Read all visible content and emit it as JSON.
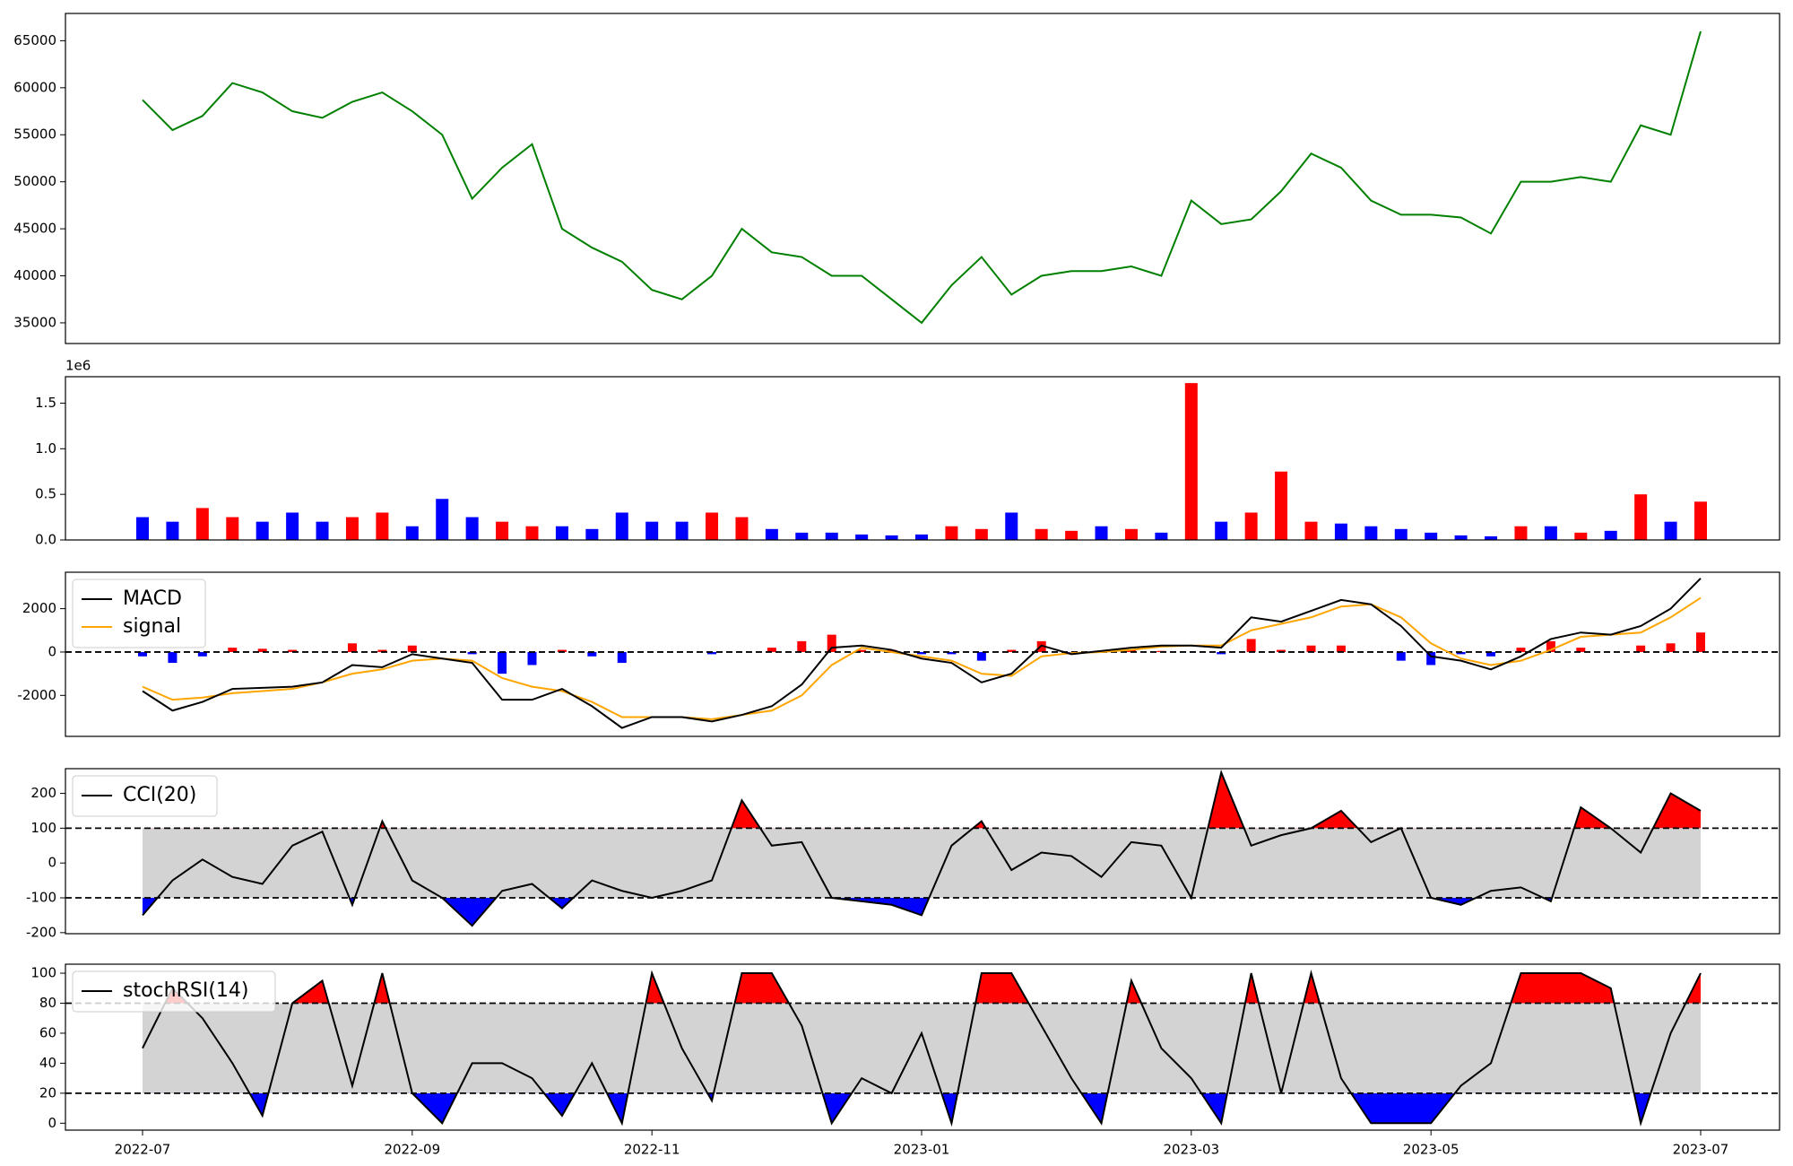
{
  "chart_data": [
    {
      "type": "line",
      "color": "green",
      "values": [
        58700,
        55500,
        57000,
        60500,
        59500,
        57500,
        56800,
        58500,
        59500,
        57500,
        55000,
        48200,
        51500,
        54000,
        45000,
        43000,
        41500,
        38500,
        37500,
        40000,
        45000,
        42500,
        42000,
        40000,
        40000,
        37500,
        35000,
        39000,
        42000,
        38000,
        40000,
        40500,
        40500,
        41000,
        40000,
        48000,
        45500,
        46000,
        49000,
        53000,
        51500,
        48000,
        46500,
        46500,
        46200,
        44500,
        50000,
        50000,
        50500,
        50000,
        56000,
        55000,
        66000
      ],
      "ylim": [
        32800,
        67900
      ],
      "yticks": [
        35000,
        40000,
        45000,
        50000,
        55000,
        60000,
        65000
      ]
    },
    {
      "type": "bar",
      "offset_label": "1e6",
      "values": [
        0.25,
        0.2,
        0.35,
        0.25,
        0.2,
        0.3,
        0.2,
        0.25,
        0.3,
        0.15,
        0.45,
        0.25,
        0.2,
        0.15,
        0.15,
        0.12,
        0.3,
        0.2,
        0.2,
        0.3,
        0.25,
        0.12,
        0.08,
        0.08,
        0.06,
        0.05,
        0.06,
        0.15,
        0.12,
        0.3,
        0.12,
        0.1,
        0.15,
        0.12,
        0.08,
        1.72,
        0.2,
        0.3,
        0.75,
        0.2,
        0.18,
        0.15,
        0.12,
        0.08,
        0.05,
        0.04,
        0.15,
        0.15,
        0.08,
        0.1,
        0.5,
        0.2,
        0.42
      ],
      "colors": [
        "blue",
        "blue",
        "red",
        "red",
        "blue",
        "blue",
        "blue",
        "red",
        "red",
        "blue",
        "blue",
        "blue",
        "red",
        "red",
        "blue",
        "blue",
        "blue",
        "blue",
        "blue",
        "red",
        "red",
        "blue",
        "blue",
        "blue",
        "blue",
        "blue",
        "blue",
        "red",
        "red",
        "blue",
        "red",
        "red",
        "blue",
        "red",
        "blue",
        "red",
        "blue",
        "red",
        "red",
        "red",
        "blue",
        "blue",
        "blue",
        "blue",
        "blue",
        "blue",
        "red",
        "blue",
        "red",
        "blue",
        "red",
        "blue",
        "red"
      ],
      "ylim": [
        0,
        1.79
      ],
      "yticks": [
        {
          "value": 0,
          "label": "0.0"
        },
        0.5,
        {
          "value": 1,
          "label": "1.0"
        },
        1.5
      ]
    },
    {
      "type": "macd",
      "legend": "upper left",
      "series": [
        {
          "name": "MACD",
          "color": "black",
          "values": [
            -1800,
            -2700,
            -2300,
            -1700,
            -1650,
            -1600,
            -1400,
            -600,
            -700,
            -100,
            -300,
            -500,
            -2200,
            -2200,
            -1700,
            -2500,
            -3500,
            -3000,
            -3000,
            -3200,
            -2900,
            -2500,
            -1500,
            200,
            300,
            100,
            -300,
            -500,
            -1400,
            -1000,
            300,
            -100,
            50,
            200,
            300,
            300,
            200,
            1600,
            1400,
            1900,
            2400,
            2200,
            1200,
            -200,
            -400,
            -800,
            -200,
            600,
            900,
            800,
            1200,
            2000,
            3400
          ]
        },
        {
          "name": "signal",
          "color": "orange",
          "values": [
            -1600,
            -2200,
            -2100,
            -1900,
            -1800,
            -1700,
            -1400,
            -1000,
            -800,
            -400,
            -300,
            -400,
            -1200,
            -1600,
            -1800,
            -2300,
            -3000,
            -3000,
            -3000,
            -3100,
            -2900,
            -2700,
            -2000,
            -600,
            200,
            0,
            -200,
            -400,
            -1000,
            -1100,
            -200,
            -50,
            0,
            100,
            250,
            300,
            300,
            1000,
            1300,
            1600,
            2100,
            2200,
            1600,
            400,
            -300,
            -600,
            -400,
            100,
            700,
            800,
            900,
            1600,
            2500
          ]
        }
      ],
      "histogram": {
        "up_color": "red",
        "down_color": "blue",
        "values": [
          -200,
          -500,
          -200,
          200,
          150,
          100,
          0,
          400,
          100,
          300,
          0,
          -100,
          -1000,
          -600,
          100,
          -200,
          -500,
          0,
          0,
          -100,
          0,
          200,
          500,
          800,
          100,
          100,
          -100,
          -100,
          -400,
          100,
          500,
          -50,
          50,
          100,
          50,
          0,
          -100,
          600,
          100,
          300,
          300,
          0,
          -400,
          -600,
          -100,
          -200,
          200,
          500,
          200,
          0,
          300,
          400,
          900
        ]
      },
      "ref_lines": [
        0
      ],
      "ylim": [
        -3890,
        3680
      ],
      "yticks": [
        -2000,
        0,
        2000
      ]
    },
    {
      "type": "oscillator",
      "legend": "upper left",
      "above_color": "red",
      "below_color": "blue",
      "band_color": "lightgray",
      "series": [
        {
          "name": "CCI(20)",
          "color": "black",
          "values": [
            -150,
            -50,
            10,
            -40,
            -60,
            50,
            90,
            -120,
            120,
            -50,
            -100,
            -180,
            -80,
            -60,
            -130,
            -50,
            -80,
            -100,
            -80,
            -50,
            180,
            50,
            60,
            -100,
            -110,
            -120,
            -150,
            50,
            120,
            -20,
            30,
            20,
            -40,
            60,
            50,
            -100,
            260,
            50,
            80,
            100,
            150,
            60,
            100,
            -100,
            -120,
            -80,
            -70,
            -110,
            160,
            100,
            30,
            200,
            150
          ]
        }
      ],
      "ref_lines": [
        -100,
        100
      ],
      "ylim": [
        -203,
        271
      ],
      "yticks": [
        -200,
        -100,
        0,
        100,
        200
      ]
    },
    {
      "type": "oscillator",
      "legend": "upper left",
      "above_color": "red",
      "below_color": "blue",
      "band_color": "lightgray",
      "series": [
        {
          "name": "stochRSI(14)",
          "color": "black",
          "values": [
            50,
            90,
            70,
            40,
            5,
            80,
            95,
            25,
            100,
            20,
            0,
            40,
            40,
            30,
            5,
            40,
            0,
            100,
            50,
            15,
            100,
            100,
            65,
            0,
            30,
            20,
            60,
            0,
            100,
            100,
            65,
            30,
            0,
            95,
            50,
            30,
            0,
            100,
            20,
            100,
            30,
            0,
            0,
            0,
            25,
            40,
            100,
            100,
            100,
            90,
            0,
            60,
            100
          ]
        }
      ],
      "ref_lines": [
        20,
        80
      ],
      "ylim": [
        -4.6,
        106
      ],
      "yticks": [
        0,
        20,
        40,
        60,
        80,
        100
      ],
      "categories": [
        "2022-07",
        null,
        null,
        null,
        null,
        null,
        null,
        null,
        null,
        "2022-09",
        null,
        null,
        null,
        null,
        null,
        null,
        null,
        "2022-11",
        null,
        null,
        null,
        null,
        null,
        null,
        null,
        null,
        "2023-01",
        null,
        null,
        null,
        null,
        null,
        null,
        null,
        null,
        "2023-03",
        null,
        null,
        null,
        null,
        null,
        null,
        null,
        "2023-05",
        null,
        null,
        null,
        null,
        null,
        null,
        null,
        null,
        "2023-07"
      ]
    }
  ]
}
